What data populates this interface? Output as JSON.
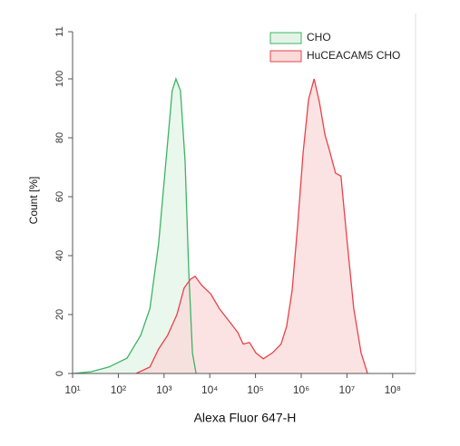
{
  "chart_data": {
    "type": "area",
    "xscale": "log",
    "xlabel": "Alexa Fluor 647-H",
    "ylabel": "Count [%]",
    "xlim": [
      10,
      316227766
    ],
    "ylim": [
      0,
      116
    ],
    "xticks": [
      {
        "value": 10,
        "label": "10¹"
      },
      {
        "value": 100,
        "label": "10²"
      },
      {
        "value": 1000,
        "label": "10³"
      },
      {
        "value": 10000,
        "label": "10⁴"
      },
      {
        "value": 100000,
        "label": "10⁵"
      },
      {
        "value": 1000000,
        "label": "10⁶"
      },
      {
        "value": 10000000,
        "label": "10⁷"
      },
      {
        "value": 100000000,
        "label": "10⁸"
      }
    ],
    "yticks": [
      0,
      20,
      40,
      60,
      80,
      100,
      {
        "value": 116,
        "label": "11"
      }
    ],
    "legend": "top-right",
    "series": [
      {
        "name": "CHO",
        "color": "#3cb464",
        "fill": "#e3f4e7",
        "x": [
          10,
          25,
          62,
          155,
          309,
          490,
          759,
          1100,
          1510,
          1820,
          2290,
          2880,
          3470,
          4170,
          5010
        ],
        "values": [
          0,
          0.6,
          2.2,
          5.2,
          13,
          22,
          44,
          72,
          96,
          100,
          96,
          72,
          35,
          7,
          0
        ]
      },
      {
        "name": "HuCEACAM5 CHO",
        "color": "#e8424a",
        "fill": "#fbdada",
        "x": [
          245,
          490,
          759,
          1200,
          1910,
          2750,
          3800,
          4790,
          6610,
          10500,
          16200,
          25700,
          40700,
          53700,
          74100,
          102000,
          148000,
          234000,
          363000,
          479000,
          631000,
          832000,
          1100000,
          1450000,
          1910000,
          2510000,
          3310000,
          4270000,
          5620000,
          7410000,
          9770000,
          14100000,
          20400000,
          28200000
        ],
        "values": [
          0,
          2.2,
          8.3,
          13,
          20,
          29,
          32,
          33,
          30,
          27,
          22,
          18,
          14,
          10,
          10.5,
          7,
          5,
          7,
          10,
          16,
          28,
          50,
          75,
          93,
          100,
          92,
          81,
          75,
          68,
          67,
          47,
          22,
          7,
          0
        ]
      }
    ]
  }
}
